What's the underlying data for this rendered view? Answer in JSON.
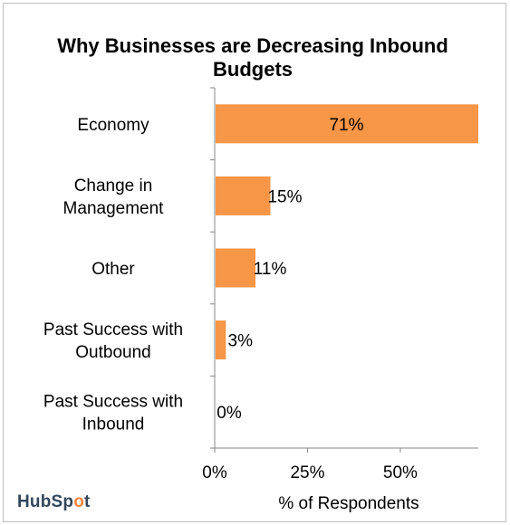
{
  "chart_data": {
    "type": "bar",
    "orientation": "horizontal",
    "title": "Why Businesses are Decreasing Inbound Budgets",
    "xlabel": "% of Respondents",
    "ylabel": "",
    "categories": [
      [
        "Economy"
      ],
      [
        "Change in",
        "Management"
      ],
      [
        "Other"
      ],
      [
        "Past Success with",
        "Outbound"
      ],
      [
        "Past Success with",
        "Inbound"
      ]
    ],
    "values": [
      71,
      15,
      11,
      3,
      0
    ],
    "data_labels": [
      "71%",
      "15%",
      "11%",
      "3%",
      "0%"
    ],
    "xlim": [
      0,
      71
    ],
    "xticks": [
      0,
      25,
      50
    ],
    "xtick_labels": [
      "0%",
      "25%",
      "50%"
    ],
    "bar_color": "#f79646",
    "grid": false,
    "legend": "none"
  },
  "branding": {
    "logo_text_before": "HubSp",
    "logo_text_o": "o",
    "logo_text_after": "t",
    "accent": "#f5853f"
  }
}
